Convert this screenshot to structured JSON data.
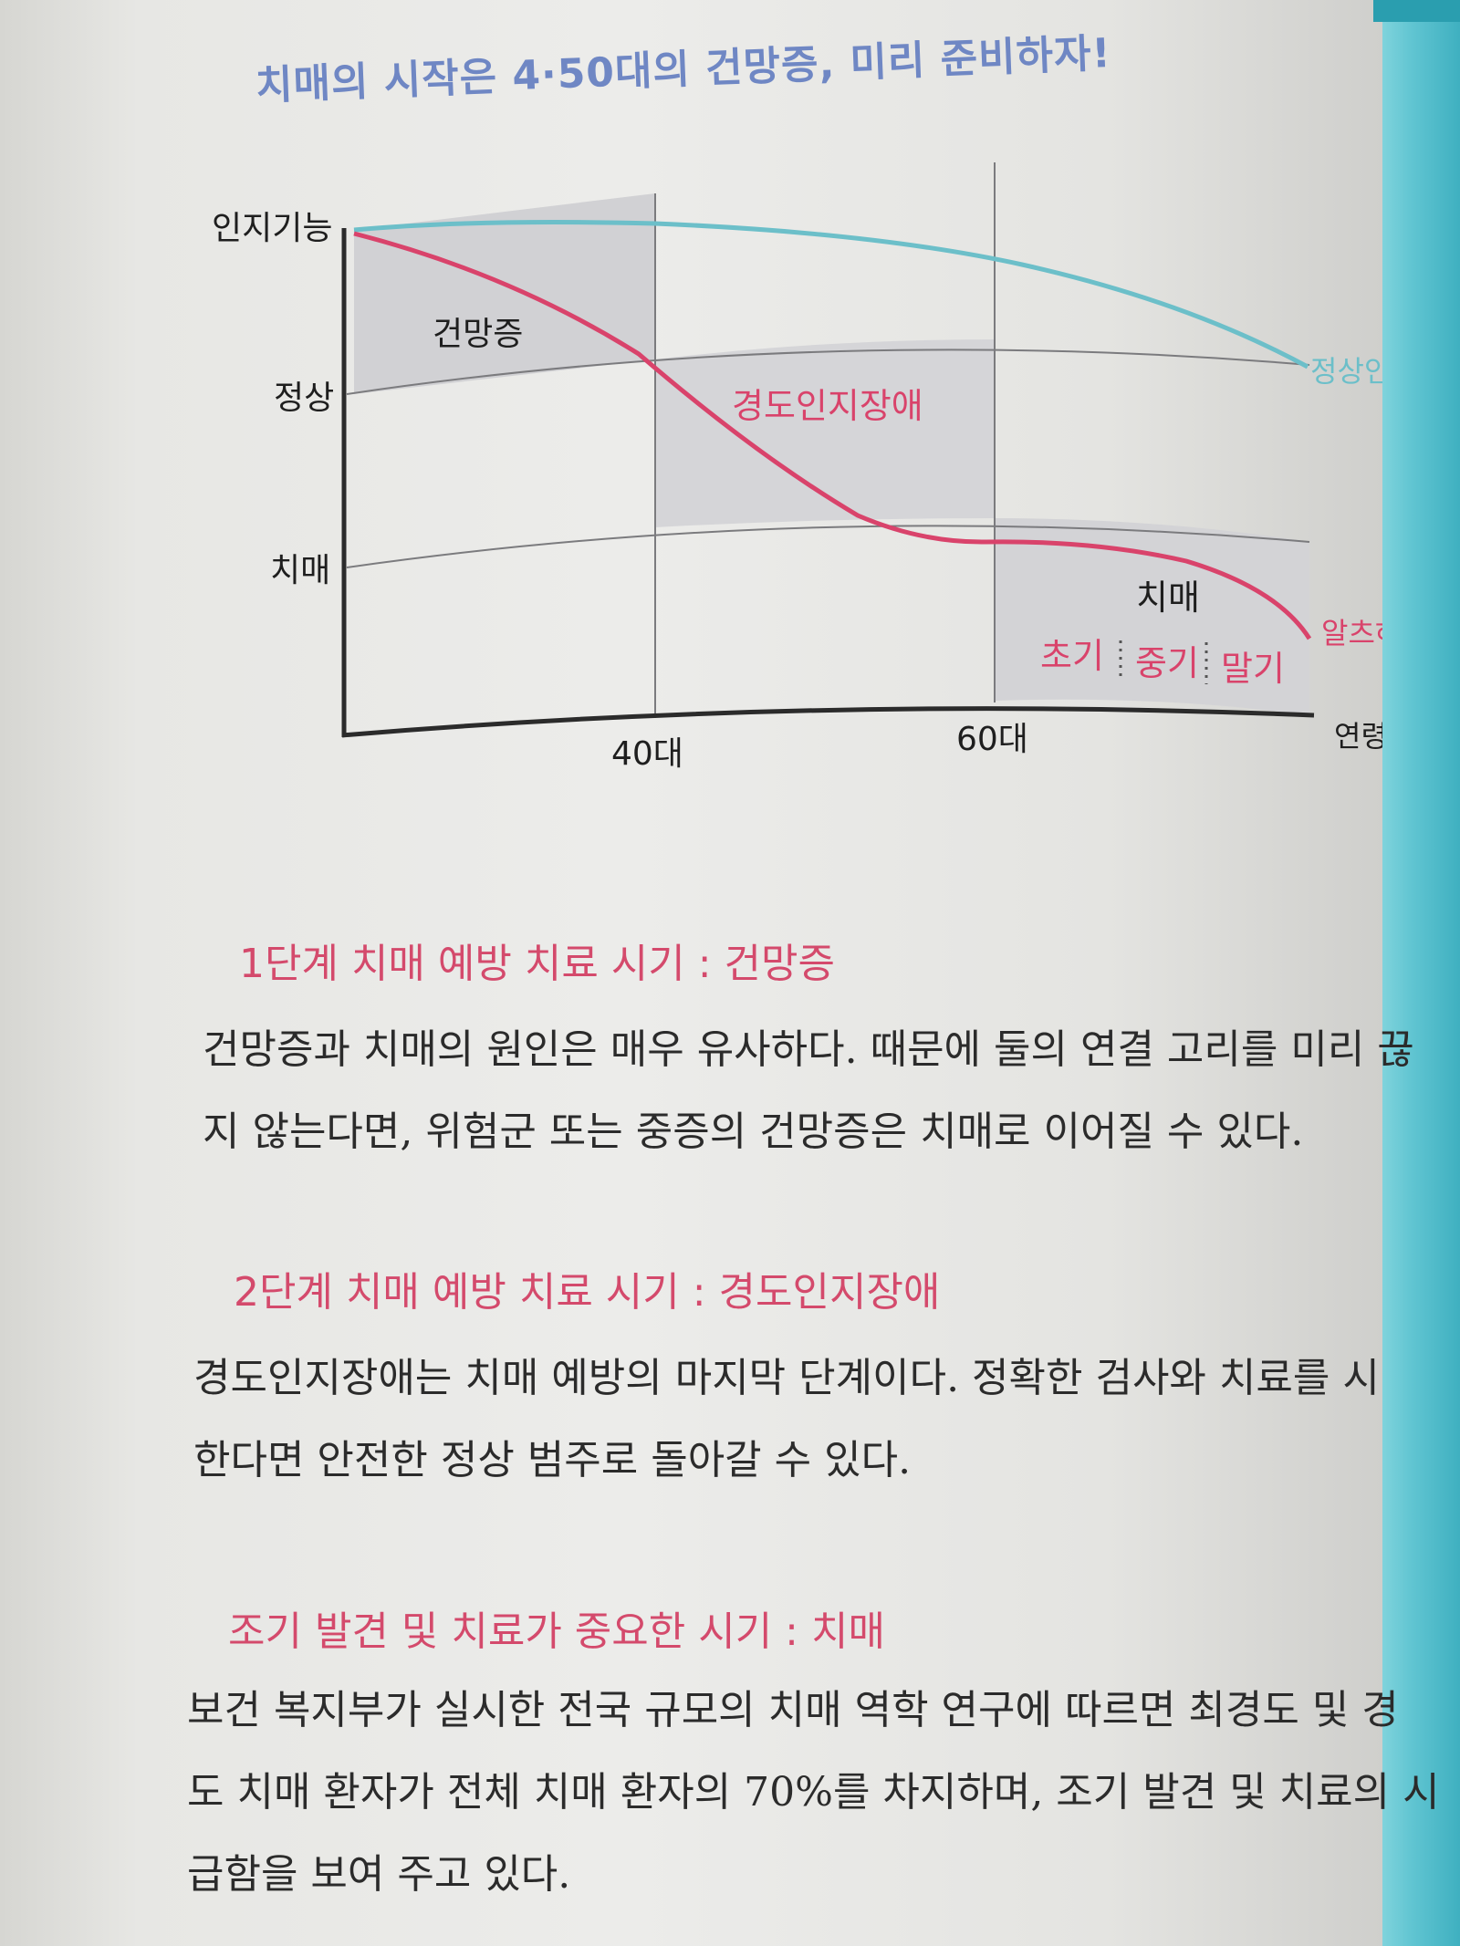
{
  "figure": {
    "title": "치매의 시작은 4·50대의 건망증, 미리 준비하자!"
  },
  "chart_data": {
    "type": "line",
    "title": "치매의 시작은 4·50대의 건망증, 미리 준비하자!",
    "xlabel": "연령",
    "ylabel": "인지기능",
    "x_ticks": [
      "40대",
      "60대"
    ],
    "y_levels": [
      "인지기능",
      "정상",
      "치매"
    ],
    "series": [
      {
        "name": "정상인",
        "color": "#6cbfc9"
      },
      {
        "name": "알츠하이머",
        "color": "#d9436b"
      }
    ],
    "zones": [
      "건망증",
      "경도인지장애",
      "치매"
    ],
    "dementia_stages": [
      "초기",
      "중기",
      "말기"
    ]
  },
  "sections": [
    {
      "heading": "1단계 치매 예방 치료 시기 : 건망증",
      "lines": [
        "건망증과 치매의 원인은 매우 유사하다. 때문에 둘의 연결 고리를 미리 끊",
        "지 않는다면, 위험군 또는 중증의 건망증은 치매로 이어질 수 있다."
      ]
    },
    {
      "heading": "2단계 치매 예방 치료 시기 : 경도인지장애",
      "lines": [
        "경도인지장애는 치매 예방의 마지막 단계이다. 정확한 검사와 치료를 시",
        "한다면 안전한 정상 범주로 돌아갈 수 있다."
      ]
    },
    {
      "heading": "조기 발견 및 치료가 중요한 시기 : 치매",
      "lines": [
        "보건 복지부가 실시한 전국 규모의 치매 역학 연구에 따르면 최경도 및 경",
        "도 치매 환자가 전체 치매 환자의 70%를 차지하며, 조기 발견 및 치료의 시",
        "급함을 보여 주고 있다."
      ]
    }
  ],
  "colors": {
    "normal_line": "#6cbfc9",
    "alzheimer_line": "#d9436b",
    "title": "#6f87c4",
    "heading": "#d44a6c",
    "zone_fill": "#d3d3d6",
    "spine": "#5fc4d1"
  }
}
